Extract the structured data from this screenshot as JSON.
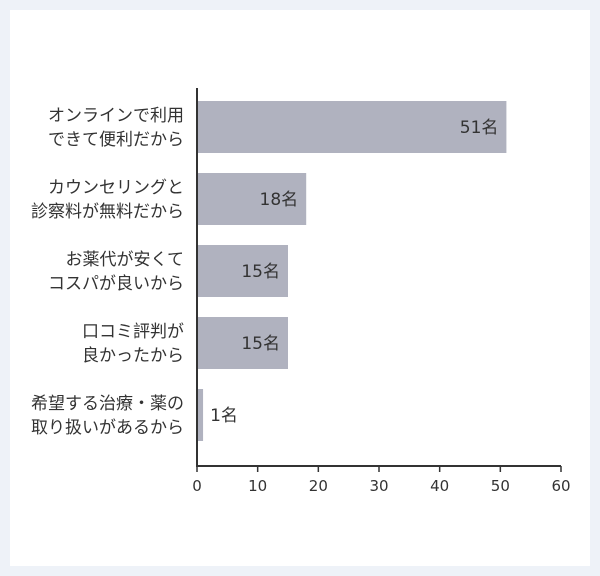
{
  "chart_data": {
    "type": "bar",
    "orientation": "horizontal",
    "categories": [
      [
        "オンラインで利用",
        "できて便利だから"
      ],
      [
        "カウンセリングと",
        "診察料が無料だから"
      ],
      [
        "お薬代が安くて",
        "コスパが良いから"
      ],
      [
        "口コミ評判が",
        "良かったから"
      ],
      [
        "希望する治療・薬の",
        "取り扱いがあるから"
      ]
    ],
    "values": [
      51,
      18,
      15,
      15,
      1
    ],
    "value_suffix": "名",
    "xlim": [
      0,
      60
    ],
    "xticks": [
      0,
      10,
      20,
      30,
      40,
      50,
      60
    ],
    "title": "",
    "xlabel": "",
    "ylabel": "",
    "grid": false,
    "bar_color": "#b0b2bf",
    "axis_color": "#333333",
    "text_color": "#333333"
  }
}
